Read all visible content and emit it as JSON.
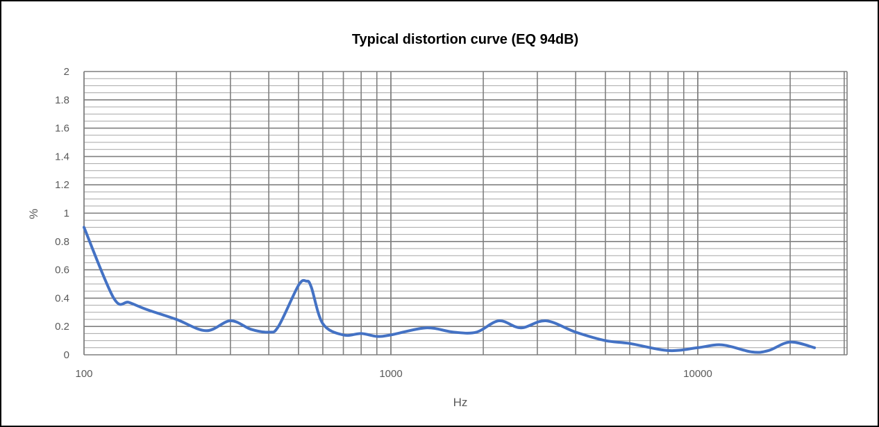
{
  "chart_data": {
    "type": "line",
    "title": "Typical distortion curve (EQ 94dB)",
    "xlabel": "Hz",
    "ylabel": "%",
    "x_scale": "log",
    "xlim": [
      100,
      30000
    ],
    "ylim": [
      0,
      2
    ],
    "grid": true,
    "x_ticks": [
      "100",
      "1000",
      "10000"
    ],
    "y_ticks": [
      "0",
      "0.2",
      "0.4",
      "0.6",
      "0.8",
      "1",
      "1.2",
      "1.4",
      "1.6",
      "1.8",
      "2"
    ],
    "colors": {
      "series": "#4472C4",
      "grid": "#7f7f7f",
      "grid_minor": "#a6a6a6",
      "text": "#595959"
    },
    "series": [
      {
        "x": [
          100,
          125,
          140,
          160,
          200,
          250,
          300,
          350,
          400,
          430,
          500,
          530,
          550,
          600,
          700,
          800,
          900,
          1000,
          1300,
          1600,
          1900,
          2250,
          2650,
          3200,
          4000,
          5000,
          6000,
          8000,
          10000,
          12000,
          15000,
          17000,
          20000,
          24000
        ],
        "y": [
          0.9,
          0.4,
          0.37,
          0.32,
          0.25,
          0.17,
          0.24,
          0.18,
          0.16,
          0.2,
          0.49,
          0.52,
          0.48,
          0.22,
          0.14,
          0.15,
          0.13,
          0.14,
          0.19,
          0.16,
          0.16,
          0.24,
          0.19,
          0.24,
          0.16,
          0.1,
          0.08,
          0.03,
          0.05,
          0.07,
          0.02,
          0.03,
          0.09,
          0.05
        ]
      }
    ]
  }
}
